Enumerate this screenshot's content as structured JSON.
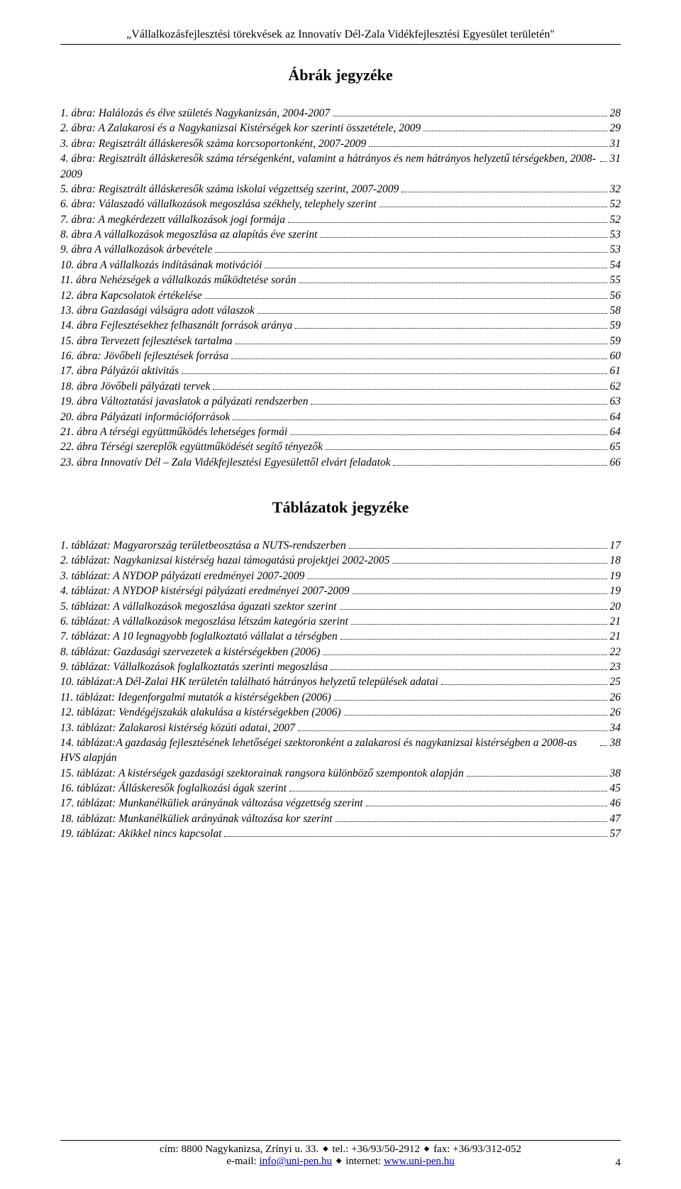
{
  "header_quote": "„Vállalkozásfejlesztési törekvések az Innovatív Dél-Zala Vidékfejlesztési Egyesület területén\"",
  "figures_title": "Ábrák jegyzéke",
  "figures": [
    {
      "label": "1. ábra: Halálozás és élve születés Nagykanizsán, 2004-2007",
      "page": "28"
    },
    {
      "label": "2. ábra: A Zalakarosi és a Nagykanizsai Kistérségek kor szerinti összetétele, 2009",
      "page": "29"
    },
    {
      "label": "3. ábra: Regisztrált álláskeresők száma korcsoportonként, 2007-2009",
      "page": "31"
    },
    {
      "label": "4. ábra: Regisztrált álláskeresők száma térségenként, valamint a hátrányos és nem hátrányos helyzetű térségekben, 2008-2009",
      "page": "31"
    },
    {
      "label": "5. ábra: Regisztrált álláskeresők száma iskolai végzettség szerint, 2007-2009",
      "page": "32"
    },
    {
      "label": "6. ábra: Válaszadó vállalkozások megoszlása székhely, telephely szerint",
      "page": "52"
    },
    {
      "label": "7. ábra: A megkérdezett vállalkozások jogi formája",
      "page": "52"
    },
    {
      "label": "8. ábra A vállalkozások megoszlása az alapítás éve szerint",
      "page": "53"
    },
    {
      "label": "9. ábra A vállalkozások árbevétele",
      "page": "53"
    },
    {
      "label": "10. ábra A vállalkozás indításának motivációi",
      "page": "54"
    },
    {
      "label": "11. ábra Nehézségek a vállalkozás működtetése során",
      "page": "55"
    },
    {
      "label": "12. ábra Kapcsolatok értékelése",
      "page": "56"
    },
    {
      "label": "13. ábra Gazdasági válságra adott válaszok",
      "page": "58"
    },
    {
      "label": "14. ábra Fejlesztésekhez felhasznált források aránya",
      "page": "59"
    },
    {
      "label": "15. ábra Tervezett fejlesztések tartalma",
      "page": "59"
    },
    {
      "label": "16. ábra: Jövőbeli fejlesztések forrása",
      "page": "60"
    },
    {
      "label": "17. ábra Pályázói aktivitás",
      "page": "61"
    },
    {
      "label": "18. ábra Jövőbeli pályázati tervek",
      "page": "62"
    },
    {
      "label": "19. ábra Változtatási javaslatok a pályázati rendszerben",
      "page": "63"
    },
    {
      "label": "20. ábra Pályázati információforrások",
      "page": "64"
    },
    {
      "label": "21. ábra A térségi együttműködés lehetséges formái",
      "page": "64"
    },
    {
      "label": "22. ábra Térségi szereplők együttműködését segítő tényezők",
      "page": "65"
    },
    {
      "label": "23. ábra Innovatív Dél – Zala Vidékfejlesztési Egyesülettől elvárt feladatok",
      "page": "66"
    }
  ],
  "tables_title": "Táblázatok jegyzéke",
  "tables": [
    {
      "label": "1. táblázat: Magyarország területbeosztása a NUTS-rendszerben",
      "page": "17"
    },
    {
      "label": "2. táblázat: Nagykanizsai kistérség hazai támogatású projektjei 2002-2005",
      "page": "18"
    },
    {
      "label": "3. táblázat: A NYDOP pályázati eredményei 2007-2009",
      "page": "19"
    },
    {
      "label": "4. táblázat: A NYDOP kistérségi pályázati eredményei 2007-2009",
      "page": "19"
    },
    {
      "label": "5. táblázat: A vállalkozások megoszlása ágazati szektor szerint",
      "page": "20"
    },
    {
      "label": "6. táblázat: A vállalkozások megoszlása létszám kategória szerint",
      "page": "21"
    },
    {
      "label": "7. táblázat: A 10 legnagyobb foglalkoztató vállalat a térségben",
      "page": "21"
    },
    {
      "label": "8. táblázat: Gazdasági szervezetek a kistérségekben (2006)",
      "page": "22"
    },
    {
      "label": "9. táblázat: Vállalkozások foglalkoztatás szerinti megoszlása",
      "page": "23"
    },
    {
      "label": "10. táblázat:A Dél-Zalai HK területén található hátrányos helyzetű települések adatai",
      "page": "25"
    },
    {
      "label": "11. táblázat: Idegenforgalmi mutatók a kistérségekben (2006)",
      "page": "26"
    },
    {
      "label": "12. táblázat: Vendégéjszakák alakulása a kistérségekben (2006)",
      "page": "26"
    },
    {
      "label": "13. táblázat: Zalakarosi kistérség közúti adatai, 2007",
      "page": "34"
    },
    {
      "label": "14. táblázat:A gazdaság fejlesztésének lehetőségei szektoronként a zalakarosi és nagykanizsai kistérségben a 2008-as HVS alapján",
      "page": "38"
    },
    {
      "label": "15. táblázat: A kistérségek gazdasági szektorainak rangsora különböző szempontok alapján",
      "page": "38"
    },
    {
      "label": "16. táblázat: Álláskeresők foglalkozási ágak szerint",
      "page": "45"
    },
    {
      "label": "17. táblázat: Munkanélküliek arányának változása végzettség szerint",
      "page": "46"
    },
    {
      "label": "18. táblázat: Munkanélküliek arányának változása kor szerint",
      "page": "47"
    },
    {
      "label": "19. táblázat: Akikkel nincs kapcsolat",
      "page": "57"
    }
  ],
  "footer": {
    "address_prefix": "cím: ",
    "address": "8800 Nagykanizsa, Zrínyi u. 33.",
    "tel_prefix": "tel.: ",
    "tel": "+36/93/50-2912",
    "fax_prefix": "fax: ",
    "fax": "+36/93/312-052",
    "email_prefix": "e-mail: ",
    "email": "info@uni-pen.hu",
    "internet_prefix": "internet: ",
    "internet": "www.uni-pen.hu",
    "page_number": "4"
  }
}
